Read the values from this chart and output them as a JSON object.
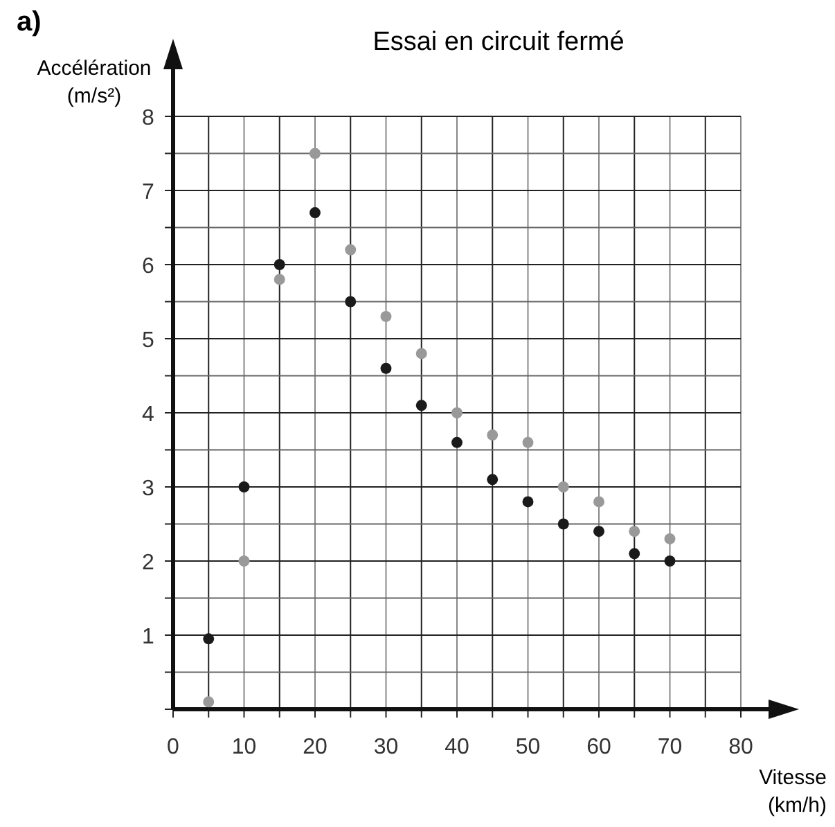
{
  "chart_data": {
    "type": "scatter",
    "title": "Essai en circuit fermé",
    "xlabel": "Vitesse\n(km/h)",
    "ylabel": "Accélération\n(m/s²)",
    "annotations": [
      "a)"
    ],
    "x": [
      5,
      10,
      15,
      20,
      25,
      30,
      35,
      40,
      45,
      50,
      55,
      60,
      65,
      70
    ],
    "series": [
      {
        "color": "#1a1a1a",
        "values": [
          0.95,
          3,
          6,
          6.7,
          5.5,
          4.6,
          4.1,
          3.6,
          3.1,
          2.8,
          2.5,
          2.4,
          2.1,
          2.0
        ]
      },
      {
        "color": "#999999",
        "values": [
          0.1,
          2,
          5.8,
          7.5,
          6.2,
          5.3,
          4.8,
          4.0,
          3.7,
          3.6,
          3.0,
          2.8,
          2.4,
          2.3
        ]
      }
    ],
    "xlim": [
      0,
      80
    ],
    "ylim": [
      0,
      8
    ],
    "xticks": [
      0,
      {
        "value": 5,
        "label": null
      },
      10,
      {
        "value": 15,
        "label": null
      },
      20,
      {
        "value": 25,
        "label": null
      },
      30,
      {
        "value": 35,
        "label": null
      },
      40,
      {
        "value": 45,
        "label": null
      },
      50,
      {
        "value": 55,
        "label": null
      },
      60,
      {
        "value": 65,
        "label": null
      },
      70,
      {
        "value": 75,
        "label": null
      },
      80
    ],
    "yticks": [
      {
        "value": 0,
        "label": null
      },
      {
        "value": 0.5,
        "label": null
      },
      1,
      {
        "value": 1.5,
        "label": null
      },
      2,
      {
        "value": 2.5,
        "label": null
      },
      3,
      {
        "value": 3.5,
        "label": null
      },
      4,
      {
        "value": 4.5,
        "label": null
      },
      5,
      {
        "value": 5.5,
        "label": null
      },
      6,
      {
        "value": 6.5,
        "label": null
      },
      7,
      {
        "value": 7.5,
        "label": null
      },
      8
    ],
    "grid": true,
    "marker": "circle"
  }
}
